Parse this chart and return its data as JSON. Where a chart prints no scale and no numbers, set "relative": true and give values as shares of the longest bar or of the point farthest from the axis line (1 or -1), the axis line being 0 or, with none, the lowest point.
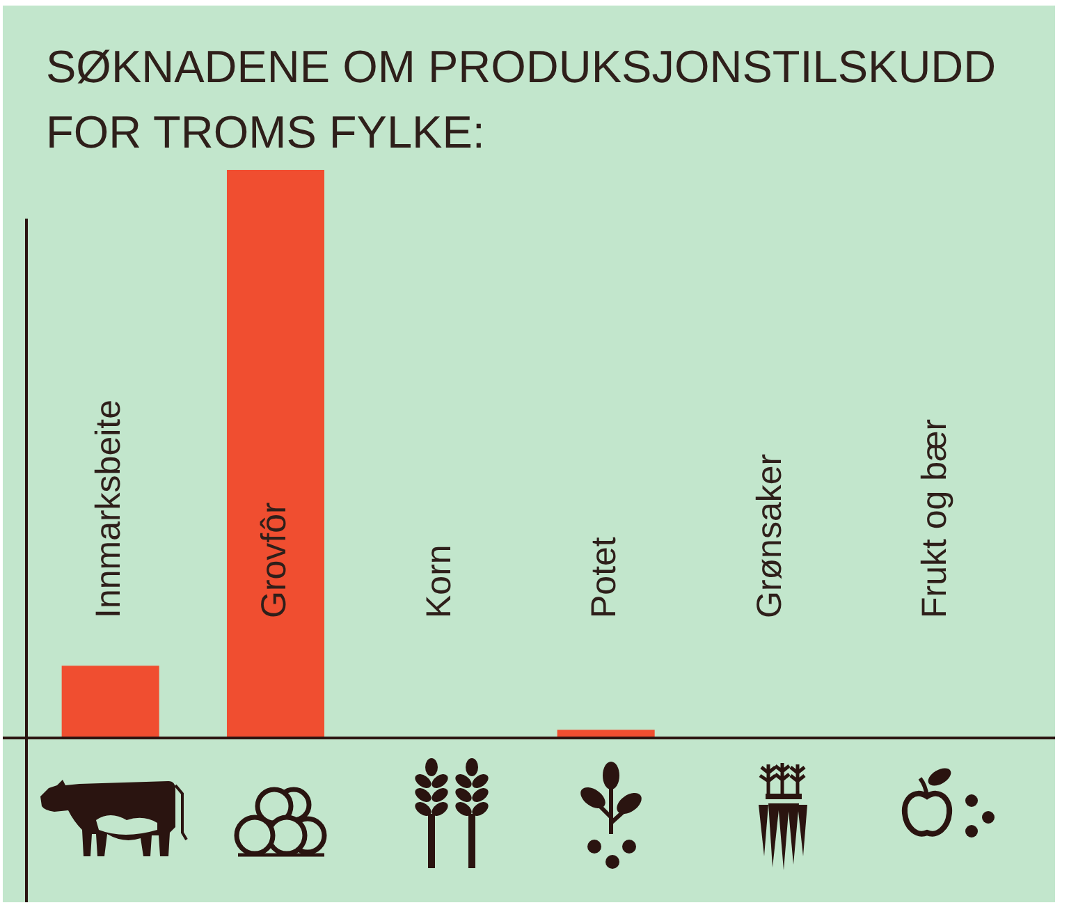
{
  "chart_data": {
    "type": "bar",
    "title": "SØKNADENE OM PRODUKSJONSTILSKUDD FOR TROMS FYLKE:",
    "categories": [
      "Innmarksbeite",
      "Grovfôr",
      "Korn",
      "Potet",
      "Grønsaker",
      "Frukt og bær"
    ],
    "values": [
      0.125,
      1,
      0,
      0.012,
      0,
      0
    ],
    "color": "#f04e30",
    "relative": true
  }
}
